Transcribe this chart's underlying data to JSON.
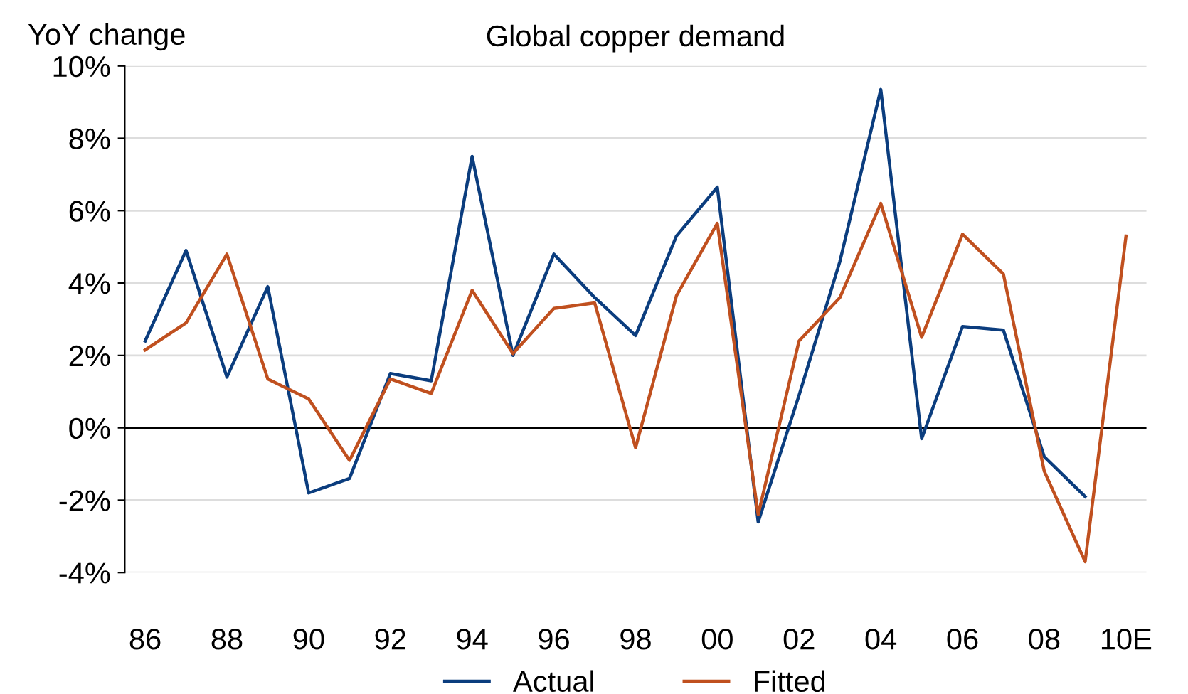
{
  "chart_data": {
    "type": "line",
    "title": "Global copper demand",
    "ylabel": "YoY change",
    "categories": [
      "86",
      null,
      "88",
      null,
      "90",
      null,
      "92",
      null,
      "94",
      null,
      "96",
      null,
      "98",
      null,
      "00",
      null,
      "02",
      null,
      "04",
      null,
      "06",
      null,
      "08",
      null,
      "10E"
    ],
    "series": [
      {
        "name": "Actual",
        "color": "#0b3d7e",
        "values": [
          2.4,
          4.9,
          1.4,
          3.9,
          -1.8,
          -1.4,
          1.5,
          1.3,
          7.5,
          2.0,
          4.8,
          3.6,
          2.55,
          5.3,
          6.65,
          -2.6,
          0.9,
          4.6,
          9.35,
          -0.3,
          2.8,
          2.7,
          -0.8,
          -1.9,
          null
        ]
      },
      {
        "name": "Fitted",
        "color": "#c0501f",
        "values": [
          2.15,
          2.9,
          4.8,
          1.35,
          0.8,
          -0.9,
          1.35,
          0.95,
          3.8,
          2.05,
          3.3,
          3.45,
          -0.55,
          3.65,
          5.65,
          -2.4,
          2.4,
          3.6,
          6.2,
          2.5,
          5.35,
          4.25,
          -1.2,
          -3.7,
          5.3
        ]
      }
    ],
    "ylim": [
      -4,
      10
    ],
    "yticks": [
      {
        "value": -4,
        "label": "-4%"
      },
      {
        "value": -2,
        "label": "-2%"
      },
      {
        "value": 0,
        "label": "0%"
      },
      {
        "value": 2,
        "label": "2%"
      },
      {
        "value": 4,
        "label": "4%"
      },
      {
        "value": 6,
        "label": "6%"
      },
      {
        "value": 8,
        "label": "8%"
      },
      {
        "value": 10,
        "label": "10%"
      }
    ],
    "ref_lines": [
      {
        "axis": "y",
        "value": 0,
        "color": "#000000"
      }
    ],
    "grid": "y",
    "legend": "bottom",
    "marker": "none",
    "line_style": "solid"
  }
}
